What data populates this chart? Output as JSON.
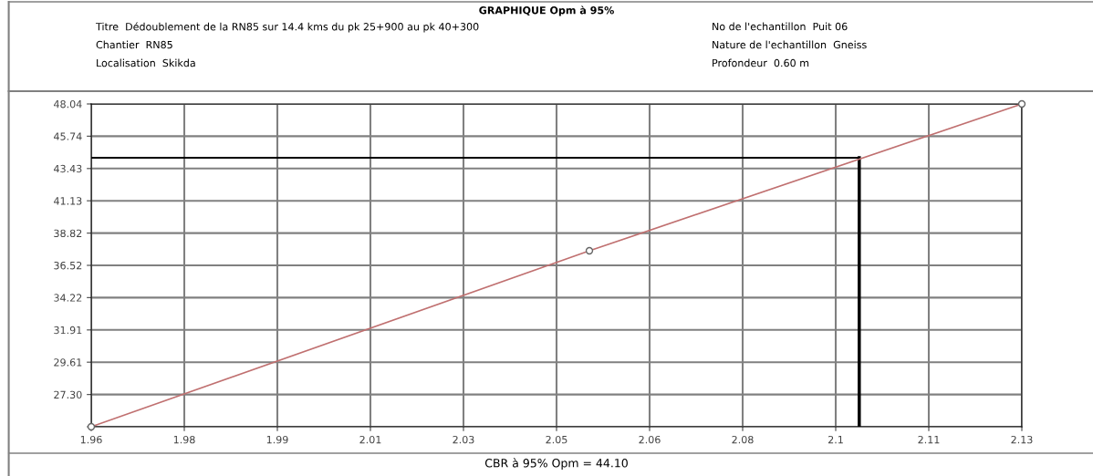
{
  "chart_data": {
    "type": "line",
    "title": "GRAPHIQUE Opm à 95%",
    "annotations": [
      "Titre  Dédoublement de la RN85 sur 14.4 kms du pk 25+900 au pk 40+300",
      "Chantier  RN85",
      "Localisation  Skikda",
      "No de l'echantillon  Puit 06",
      "Nature de l'echantillon  Gneiss",
      "Profondeur  0.60 m"
    ],
    "xlabel": "CBR à 95% Opm = 44.10",
    "x": [
      1.96,
      2.051,
      2.13
    ],
    "series": [
      {
        "color": "#c07070",
        "values": [
          25.0,
          37.56,
          48.04
        ]
      }
    ],
    "marker": "circle",
    "xlim": [
      1.96,
      2.13
    ],
    "xticks": [
      {
        "value": 1.96,
        "label": "1.96"
      },
      {
        "value": 1.977,
        "label": "1.98"
      },
      {
        "value": 1.994,
        "label": "1.99"
      },
      {
        "value": 2.011,
        "label": "2.01"
      },
      {
        "value": 2.028,
        "label": "2.03"
      },
      {
        "value": 2.045,
        "label": "2.05"
      },
      {
        "value": 2.062,
        "label": "2.06"
      },
      {
        "value": 2.079,
        "label": "2.08"
      },
      {
        "value": 2.096,
        "label": "2.1"
      },
      {
        "value": 2.113,
        "label": "2.11"
      },
      {
        "value": 2.13,
        "label": "2.13"
      }
    ],
    "ylim": [
      25.0,
      48.04
    ],
    "yticks": [
      {
        "value": 25.0,
        "label": null
      },
      {
        "value": 27.3,
        "label": "27.30"
      },
      29.61,
      31.91,
      34.22,
      36.52,
      38.82,
      41.13,
      43.43,
      45.74,
      48.04
    ],
    "ref_lines": [
      {
        "axis": "y",
        "value": 44.2,
        "color": "#000000"
      },
      {
        "axis": "x",
        "value": 2.1003,
        "color": "#000000"
      }
    ],
    "grid": true
  }
}
